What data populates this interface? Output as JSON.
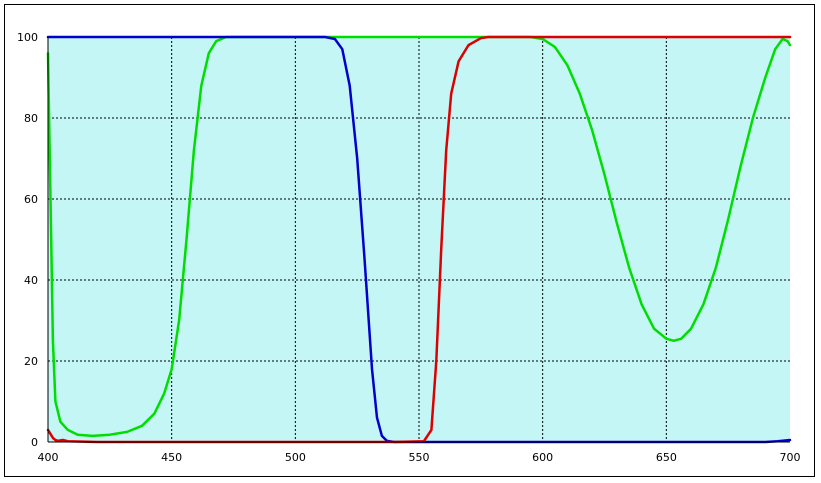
{
  "chart_data": {
    "type": "line",
    "title": "",
    "xlabel": "",
    "ylabel": "",
    "xlim": [
      400,
      700
    ],
    "ylim": [
      0,
      100
    ],
    "x_ticks": [
      "400",
      "450",
      "500",
      "550",
      "600",
      "650",
      "700"
    ],
    "y_ticks": [
      "0",
      "20",
      "40",
      "60",
      "80",
      "100"
    ],
    "grid": true,
    "legend": "none",
    "colors": {
      "plot_background": "#c4f6f6",
      "grid": "#000000"
    },
    "series": [
      {
        "color": "#00dd00",
        "x": [
          400,
          401,
          402,
          403,
          405,
          408,
          412,
          418,
          425,
          432,
          438,
          443,
          447,
          450,
          453,
          456,
          459,
          462,
          465,
          468,
          472,
          480,
          490,
          500,
          520,
          540,
          560,
          580,
          595,
          600,
          605,
          610,
          615,
          620,
          625,
          630,
          635,
          640,
          645,
          650,
          653,
          656,
          660,
          665,
          670,
          675,
          680,
          685,
          690,
          694,
          697,
          699,
          700
        ],
        "y": [
          96,
          60,
          25,
          10,
          5,
          3,
          1.8,
          1.5,
          1.8,
          2.5,
          4,
          7,
          12,
          18,
          30,
          50,
          72,
          88,
          96,
          99,
          100,
          100,
          100,
          100,
          100,
          100,
          100,
          100,
          100,
          99.5,
          97.5,
          93,
          86,
          77,
          66,
          54,
          43,
          34,
          28,
          25.5,
          25,
          25.5,
          28,
          34,
          43,
          55,
          68,
          80,
          90,
          97,
          99.5,
          99,
          98
        ]
      },
      {
        "color": "#0000cc",
        "x": [
          400,
          500,
          512,
          516,
          519,
          522,
          525,
          528,
          531,
          533,
          535,
          537,
          540,
          560,
          600,
          650,
          690,
          695,
          700
        ],
        "y": [
          100,
          100,
          100,
          99.5,
          97,
          88,
          70,
          45,
          18,
          6,
          1.5,
          0.3,
          0,
          0,
          0,
          0,
          0,
          0.2,
          0.5
        ]
      },
      {
        "color": "#dd0000",
        "x": [
          400,
          401,
          402,
          403,
          404,
          406,
          408,
          420,
          500,
          540,
          552,
          555,
          557,
          559,
          561,
          563,
          566,
          570,
          575,
          578,
          600,
          700
        ],
        "y": [
          3,
          2,
          1,
          0.5,
          0.3,
          0.5,
          0.2,
          0,
          0,
          0,
          0.2,
          3,
          20,
          48,
          72,
          86,
          94,
          98,
          99.7,
          100,
          100,
          100
        ]
      }
    ]
  }
}
